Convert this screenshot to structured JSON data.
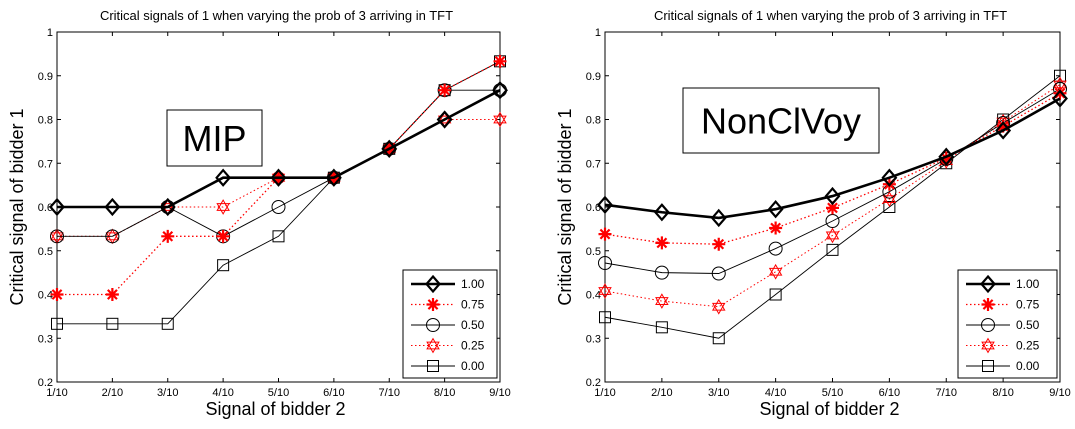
{
  "chart_data": [
    {
      "type": "line",
      "title": "Critical signals of 1 when varying the prob of 3 arriving in TFT",
      "xlabel": "Signal of bidder 2",
      "ylabel": "Critical signal of bidder 1",
      "annotation": "MIP",
      "categories": [
        "1/10",
        "2/10",
        "3/10",
        "4/10",
        "5/10",
        "6/10",
        "7/10",
        "8/10",
        "9/10"
      ],
      "yticks": [
        "0.2",
        "0.3",
        "0.4",
        "0.5",
        "0.6",
        "0.7",
        "0.8",
        "0.9",
        "1"
      ],
      "ylim": [
        0.2,
        1.0
      ],
      "grid": false,
      "legend_position": "bottom-right",
      "series": [
        {
          "name": "1.00",
          "values": [
            0.6,
            0.6,
            0.6,
            0.667,
            0.667,
            0.667,
            0.733,
            0.8,
            0.867
          ],
          "color": "#000000",
          "marker": "diamond",
          "dash": "solid",
          "width": 2.6
        },
        {
          "name": "0.75",
          "values": [
            0.4,
            0.4,
            0.533,
            0.533,
            0.667,
            0.667,
            0.733,
            0.867,
            0.933
          ],
          "color": "#ff0000",
          "marker": "asterisk",
          "dash": "dotted",
          "width": 1.3
        },
        {
          "name": "0.50",
          "values": [
            0.533,
            0.533,
            0.6,
            0.533,
            0.6,
            0.667,
            0.733,
            0.867,
            0.867
          ],
          "color": "#000000",
          "marker": "circle",
          "dash": "solid",
          "width": 0.9
        },
        {
          "name": "0.25",
          "values": [
            0.533,
            0.533,
            0.6,
            0.6,
            0.667,
            0.667,
            0.733,
            0.8,
            0.8
          ],
          "color": "#ff0000",
          "marker": "hexagram",
          "dash": "dotted",
          "width": 1.0
        },
        {
          "name": "0.00",
          "values": [
            0.333,
            0.333,
            0.333,
            0.467,
            0.533,
            0.667,
            0.733,
            0.867,
            0.933
          ],
          "color": "#000000",
          "marker": "square",
          "dash": "solid",
          "width": 0.9
        }
      ]
    },
    {
      "type": "line",
      "title": "Critical signals of 1 when varying the prob of 3 arriving in TFT",
      "xlabel": "Signal of bidder 2",
      "ylabel": "Critical signal of bidder 1",
      "annotation": "NonClVoy",
      "categories": [
        "1/10",
        "2/10",
        "3/10",
        "4/10",
        "5/10",
        "6/10",
        "7/10",
        "8/10",
        "9/10"
      ],
      "yticks": [
        "0.2",
        "0.3",
        "0.4",
        "0.5",
        "0.6",
        "0.7",
        "0.8",
        "0.9",
        "1"
      ],
      "ylim": [
        0.2,
        1.0
      ],
      "grid": false,
      "legend_position": "bottom-right",
      "series": [
        {
          "name": "1.00",
          "values": [
            0.605,
            0.588,
            0.575,
            0.595,
            0.625,
            0.667,
            0.715,
            0.775,
            0.848
          ],
          "color": "#000000",
          "marker": "diamond",
          "dash": "solid",
          "width": 2.6
        },
        {
          "name": "0.75",
          "values": [
            0.538,
            0.518,
            0.515,
            0.552,
            0.598,
            0.652,
            0.712,
            0.785,
            0.86
          ],
          "color": "#ff0000",
          "marker": "asterisk",
          "dash": "dotted",
          "width": 1.3
        },
        {
          "name": "0.50",
          "values": [
            0.472,
            0.45,
            0.448,
            0.505,
            0.568,
            0.635,
            0.71,
            0.792,
            0.87
          ],
          "color": "#000000",
          "marker": "circle",
          "dash": "solid",
          "width": 0.9
        },
        {
          "name": "0.25",
          "values": [
            0.408,
            0.385,
            0.372,
            0.452,
            0.535,
            0.618,
            0.705,
            0.795,
            0.88
          ],
          "color": "#ff0000",
          "marker": "hexagram",
          "dash": "dotted",
          "width": 1.0
        },
        {
          "name": "0.00",
          "values": [
            0.348,
            0.325,
            0.3,
            0.4,
            0.502,
            0.6,
            0.7,
            0.8,
            0.9
          ],
          "color": "#000000",
          "marker": "square",
          "dash": "solid",
          "width": 0.9
        }
      ]
    }
  ]
}
